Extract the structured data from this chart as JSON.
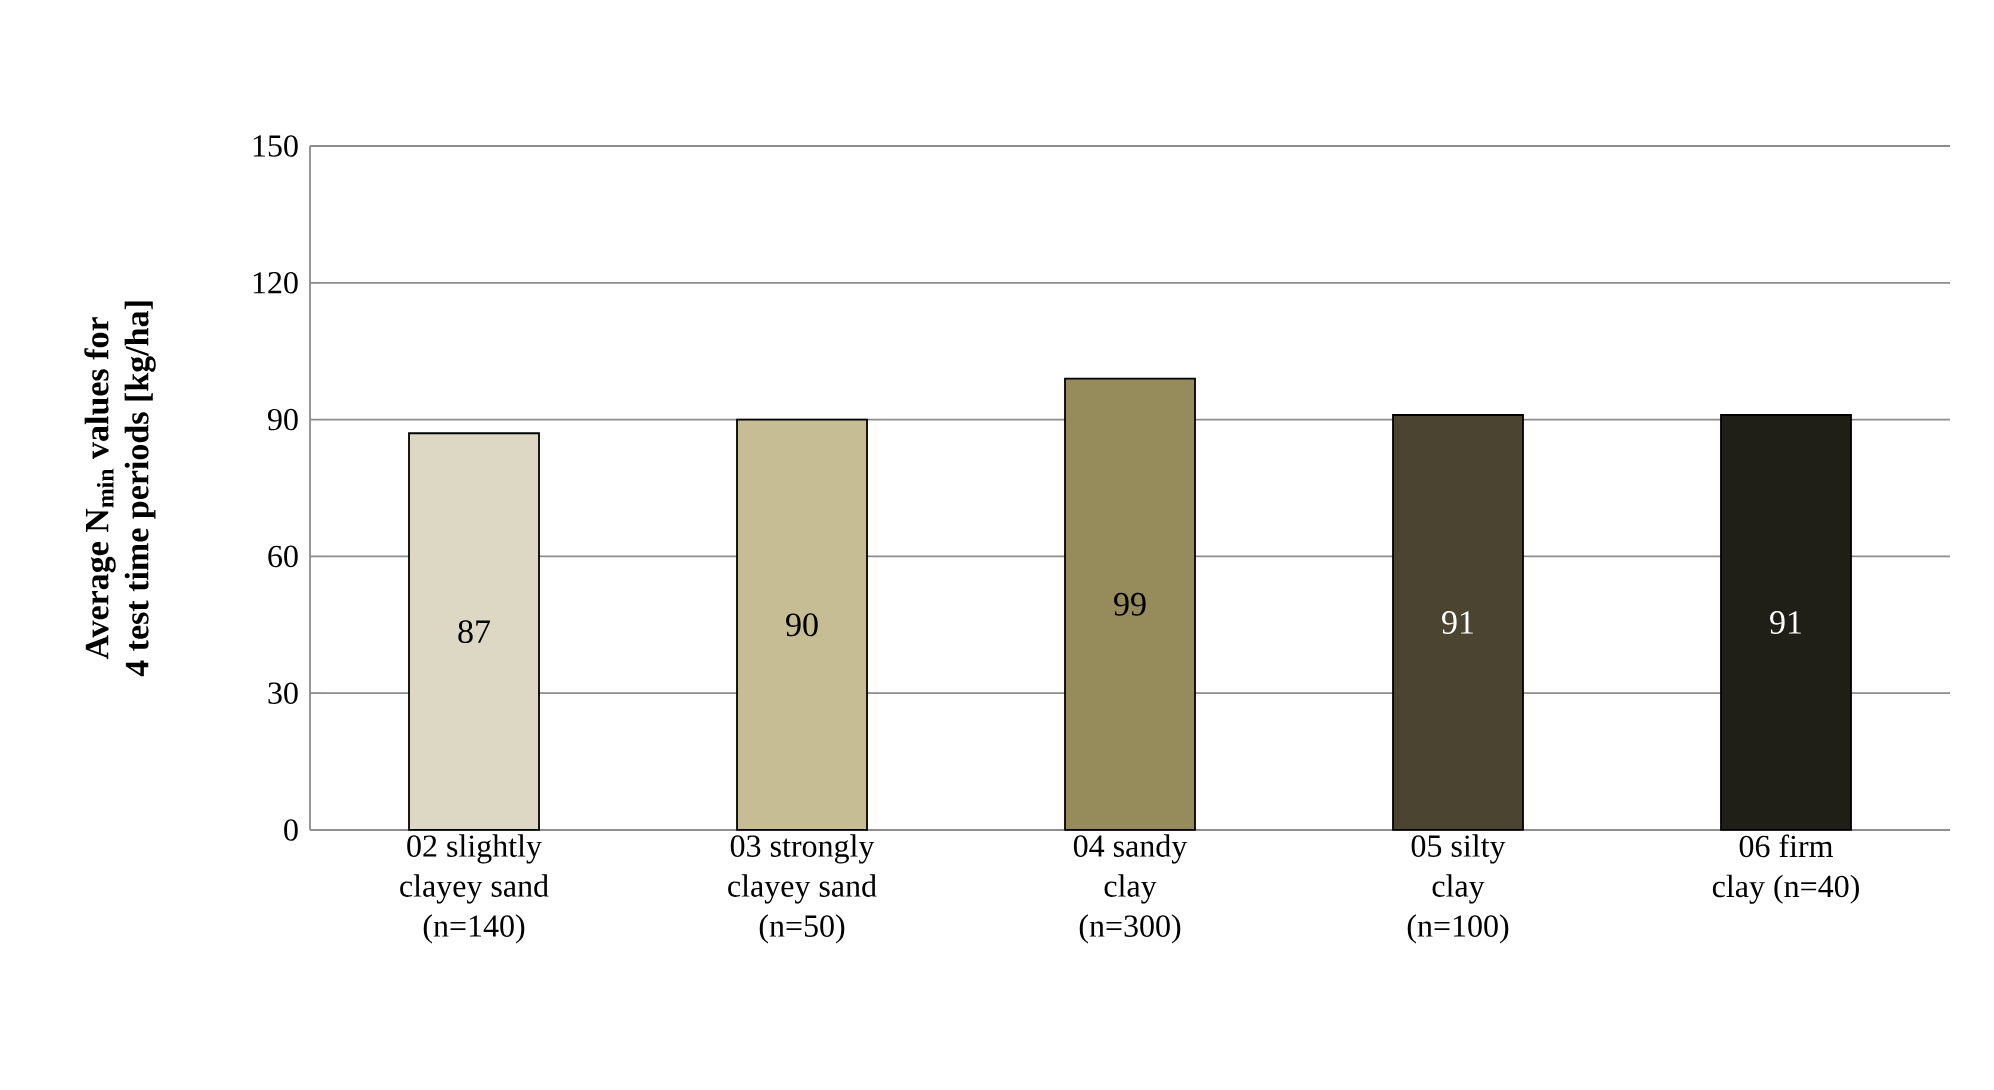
{
  "chart_data": {
    "type": "bar",
    "ylabel": "Average N$_{min}$ values for 4 test time periods [kg/ha]",
    "categories": [
      "02 slightly clayey sand (n=140)",
      "03 strongly clayey sand (n=50)",
      "04 sandy clay (n=300)",
      "05 silty clay (n=100)",
      "06 firm clay (n=40)"
    ],
    "values": [
      87,
      90,
      99,
      91,
      91
    ],
    "colors": [
      "#ddd8c4",
      "#c6bd95",
      "#958b5b",
      "#4a4430",
      "#1f1f17"
    ],
    "ylim": [
      0,
      150
    ],
    "yticks": [
      0,
      30,
      60,
      90,
      120,
      150
    ],
    "grid": "y",
    "data_labels": true
  }
}
